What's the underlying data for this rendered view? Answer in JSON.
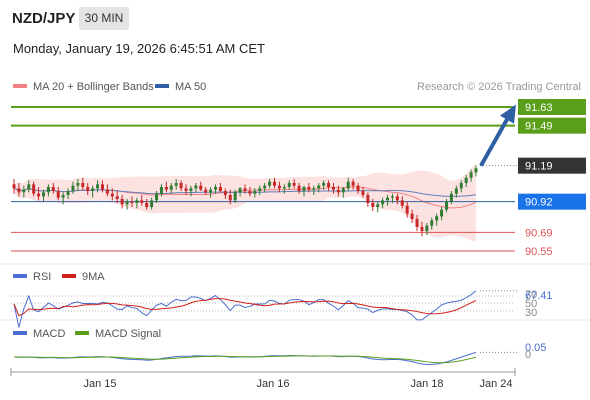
{
  "header": {
    "symbol": "NZD/JPY",
    "timeframe": "30 MIN",
    "datetime": "Monday, January 19, 2026 6:45:51 AM CET",
    "copyright": "Research © 2026 Trading Central"
  },
  "legend": {
    "ma20": "MA 20 + Bollinger Bands",
    "ma50": "MA 50",
    "ma20_color": "#f08080",
    "ma50_color": "#2e5fa3"
  },
  "levels": [
    {
      "value": 91.63,
      "label": "91.63",
      "style": "green-box"
    },
    {
      "value": 91.49,
      "label": "91.49",
      "style": "green-box"
    },
    {
      "value": 91.19,
      "label": "91.19",
      "style": "dark-box"
    },
    {
      "value": 90.92,
      "label": "90.92",
      "style": "blue-box"
    },
    {
      "value": 90.69,
      "label": "90.69",
      "style": "red-text"
    },
    {
      "value": 90.55,
      "label": "90.55",
      "style": "red-text"
    }
  ],
  "colors": {
    "green": "#5a9e1a",
    "blue": "#1a73e8",
    "dark": "#333333",
    "red": "#e05050",
    "candle_up": "#2e7d32",
    "candle_down": "#c62828",
    "arrow": "#2e5fa3",
    "band_fill": "#fde2e2"
  },
  "rsi": {
    "label": "RSI",
    "signal_label": "9MA",
    "current": "67.41",
    "levels": [
      "30",
      "50",
      "70"
    ]
  },
  "macd": {
    "label": "MACD",
    "signal_label": "MACD Signal",
    "current": "0.05"
  },
  "xaxis": {
    "labels": [
      "Jan 15",
      "Jan 16",
      "Jan 18",
      "Jan 24"
    ]
  },
  "chart_data": {
    "type": "candlestick",
    "price_range": [
      90.48,
      91.7
    ],
    "series": [
      {
        "name": "MA 20 + Bollinger Bands"
      },
      {
        "name": "MA 50"
      }
    ],
    "candles": [
      [
        91.05,
        91.09,
        90.98,
        91.02
      ],
      [
        91.02,
        91.06,
        90.96,
        90.99
      ],
      [
        90.99,
        91.04,
        90.95,
        91.01
      ],
      [
        91.01,
        91.08,
        90.99,
        91.05
      ],
      [
        91.05,
        91.07,
        90.96,
        90.98
      ],
      [
        90.98,
        91.03,
        90.93,
        90.96
      ],
      [
        90.96,
        91.01,
        90.92,
        90.99
      ],
      [
        90.99,
        91.05,
        90.96,
        91.03
      ],
      [
        91.03,
        91.06,
        90.98,
        91.0
      ],
      [
        91.0,
        91.03,
        90.93,
        90.95
      ],
      [
        90.95,
        90.99,
        90.9,
        90.97
      ],
      [
        90.97,
        91.02,
        90.94,
        91.0
      ],
      [
        91.0,
        91.07,
        90.98,
        91.04
      ],
      [
        91.04,
        91.09,
        91.0,
        91.06
      ],
      [
        91.06,
        91.1,
        91.01,
        91.03
      ],
      [
        91.03,
        91.06,
        90.97,
        91.0
      ],
      [
        91.0,
        91.04,
        90.95,
        91.02
      ],
      [
        91.02,
        91.08,
        90.99,
        91.05
      ],
      [
        91.05,
        91.08,
        90.99,
        91.01
      ],
      [
        91.01,
        91.05,
        90.96,
        90.98
      ],
      [
        90.98,
        91.02,
        90.93,
        90.96
      ],
      [
        90.96,
        91.0,
        90.91,
        90.94
      ],
      [
        90.94,
        90.97,
        90.87,
        90.9
      ],
      [
        90.9,
        90.94,
        90.86,
        90.92
      ],
      [
        90.92,
        90.96,
        90.88,
        90.91
      ],
      [
        90.91,
        90.95,
        90.87,
        90.93
      ],
      [
        90.93,
        90.97,
        90.89,
        90.91
      ],
      [
        90.91,
        90.94,
        90.86,
        90.88
      ],
      [
        90.88,
        90.95,
        90.86,
        90.93
      ],
      [
        90.93,
        91.0,
        90.91,
        90.98
      ],
      [
        90.98,
        91.05,
        90.96,
        91.03
      ],
      [
        91.03,
        91.07,
        90.99,
        91.01
      ],
      [
        91.01,
        91.06,
        90.98,
        91.04
      ],
      [
        91.04,
        91.09,
        91.01,
        91.06
      ],
      [
        91.06,
        91.08,
        91.0,
        91.02
      ],
      [
        91.02,
        91.05,
        90.97,
        91.0
      ],
      [
        91.0,
        91.04,
        90.96,
        91.02
      ],
      [
        91.02,
        91.06,
        90.99,
        91.04
      ],
      [
        91.04,
        91.07,
        91.0,
        91.01
      ],
      [
        91.01,
        91.03,
        90.97,
        90.99
      ],
      [
        90.99,
        91.03,
        90.95,
        91.01
      ],
      [
        91.01,
        91.05,
        90.98,
        91.03
      ],
      [
        91.03,
        91.06,
        90.99,
        91.0
      ],
      [
        91.0,
        91.02,
        90.94,
        90.97
      ],
      [
        90.97,
        91.01,
        90.9,
        90.93
      ],
      [
        90.93,
        91.01,
        90.91,
        90.99
      ],
      [
        90.99,
        91.03,
        90.96,
        91.02
      ],
      [
        91.02,
        91.05,
        90.98,
        91.0
      ],
      [
        91.0,
        91.03,
        90.96,
        90.98
      ],
      [
        90.98,
        91.02,
        90.95,
        91.0
      ],
      [
        91.0,
        91.04,
        90.97,
        91.02
      ],
      [
        91.02,
        91.06,
        90.99,
        91.04
      ],
      [
        91.04,
        91.09,
        91.02,
        91.07
      ],
      [
        91.07,
        91.1,
        91.02,
        91.04
      ],
      [
        91.04,
        91.07,
        90.99,
        91.02
      ],
      [
        91.02,
        91.05,
        90.98,
        91.03
      ],
      [
        91.03,
        91.08,
        91.01,
        91.06
      ],
      [
        91.06,
        91.09,
        91.02,
        91.04
      ],
      [
        91.04,
        91.06,
        90.98,
        91.0
      ],
      [
        91.0,
        91.04,
        90.96,
        91.03
      ],
      [
        91.03,
        91.06,
        90.99,
        91.01
      ],
      [
        91.01,
        91.04,
        90.97,
        91.02
      ],
      [
        91.02,
        91.06,
        90.99,
        91.04
      ],
      [
        91.04,
        91.08,
        91.01,
        91.06
      ],
      [
        91.06,
        91.08,
        91.0,
        91.03
      ],
      [
        91.03,
        91.06,
        90.98,
        91.01
      ],
      [
        91.01,
        91.04,
        90.96,
        90.99
      ],
      [
        90.99,
        91.03,
        90.95,
        91.02
      ],
      [
        91.02,
        91.1,
        91.0,
        91.07
      ],
      [
        91.07,
        91.09,
        91.01,
        91.04
      ],
      [
        91.04,
        91.06,
        90.98,
        91.0
      ],
      [
        91.0,
        91.03,
        90.95,
        90.97
      ],
      [
        90.97,
        90.99,
        90.88,
        90.91
      ],
      [
        90.91,
        90.94,
        90.85,
        90.88
      ],
      [
        90.88,
        90.92,
        90.84,
        90.9
      ],
      [
        90.9,
        90.95,
        90.87,
        90.93
      ],
      [
        90.93,
        90.97,
        90.89,
        90.95
      ],
      [
        90.95,
        90.98,
        90.91,
        90.96
      ],
      [
        90.96,
        90.98,
        90.9,
        90.93
      ],
      [
        90.93,
        90.96,
        90.87,
        90.89
      ],
      [
        90.89,
        90.92,
        90.8,
        90.83
      ],
      [
        90.83,
        90.86,
        90.76,
        90.79
      ],
      [
        90.79,
        90.82,
        90.7,
        90.73
      ],
      [
        90.73,
        90.77,
        90.66,
        90.7
      ],
      [
        90.7,
        90.76,
        90.67,
        90.74
      ],
      [
        90.74,
        90.8,
        90.71,
        90.78
      ],
      [
        90.78,
        90.83,
        90.74,
        90.81
      ],
      [
        90.81,
        90.88,
        90.78,
        90.86
      ],
      [
        90.86,
        90.94,
        90.84,
        90.92
      ],
      [
        90.92,
        91.0,
        90.9,
        90.98
      ],
      [
        90.98,
        91.04,
        90.95,
        91.02
      ],
      [
        91.02,
        91.08,
        90.99,
        91.06
      ],
      [
        91.06,
        91.12,
        91.03,
        91.1
      ],
      [
        91.1,
        91.16,
        91.07,
        91.14
      ],
      [
        91.14,
        91.19,
        91.11,
        91.17
      ]
    ]
  }
}
